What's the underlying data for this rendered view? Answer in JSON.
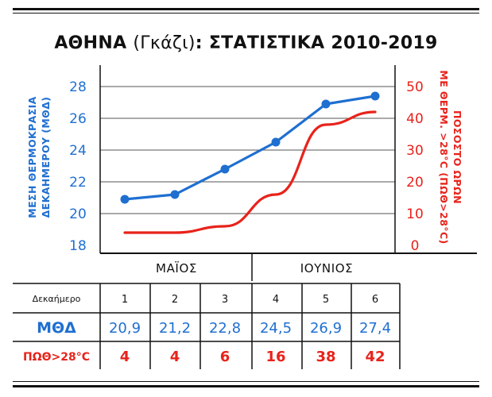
{
  "title": {
    "main_left": "ΑΘΗΝΑ ",
    "paren": "(Γκάζι)",
    "main_right": ": ΣΤΑΤΙΣΤΙΚΑ 2010-2019"
  },
  "colors": {
    "temperature": "#1f6fd1",
    "hours": "#e8231b",
    "text": "#111111",
    "grid": "#555555"
  },
  "chart_data": {
    "type": "line",
    "categories": [
      "1",
      "2",
      "3",
      "4",
      "5",
      "6"
    ],
    "series": [
      {
        "name": "ΜΘΔ",
        "axis": "left",
        "values": [
          20.9,
          21.2,
          22.8,
          24.5,
          26.9,
          27.4
        ],
        "markers": true,
        "color": "#1f6fd1"
      },
      {
        "name": "ΠΩΘ>28°C",
        "axis": "right",
        "values": [
          4,
          4,
          6,
          16,
          38,
          42
        ],
        "markers": false,
        "color": "#e8231b"
      }
    ],
    "y_left": {
      "label_line1": "ΜΕΣΗ ΘΕΡΜΟΚΡΑΣΙΑ",
      "label_line2": "ΔΕΚΑΗΜΕΡΟΥ (ΜΘΔ)",
      "min": 18,
      "max": 29,
      "ticks": [
        "18",
        "20",
        "22",
        "24",
        "26",
        "28"
      ]
    },
    "y_right": {
      "label_line1": "ΠΟΣΟΣΤΟ ΩΡΩΝ",
      "label_line2": "ΜΕ ΘΕΡΜ. >28°C (ΠΩΘ>28°C)",
      "min": 0,
      "max": 55,
      "ticks": [
        "0",
        "10",
        "20",
        "30",
        "40",
        "50"
      ]
    },
    "months": [
      "ΜΑΪΟΣ",
      "ΙΟΥΝΙΟΣ"
    ],
    "grid": true
  },
  "table": {
    "header_label": "Δεκαήμερο",
    "headers": [
      "1",
      "2",
      "3",
      "4",
      "5",
      "6"
    ],
    "rows": [
      {
        "label": "ΜΘΔ",
        "values": [
          "20,9",
          "21,2",
          "22,8",
          "24,5",
          "26,9",
          "27,4"
        ]
      },
      {
        "label": "ΠΩΘ>28°C",
        "values": [
          "4",
          "4",
          "6",
          "16",
          "38",
          "42"
        ]
      }
    ]
  }
}
